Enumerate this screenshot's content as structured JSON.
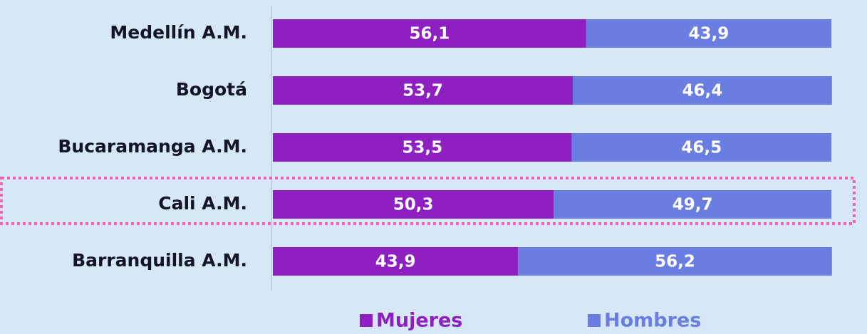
{
  "chart_data": {
    "type": "stacked_barh",
    "categories": [
      "Medellín A.M.",
      "Bogotá",
      "Bucaramanga A.M.",
      "Cali A.M.",
      "Barranquilla A.M."
    ],
    "series": [
      {
        "name": "Mujeres",
        "color": "#8e1fc0",
        "values": [
          56.1,
          53.7,
          53.5,
          50.3,
          43.9
        ],
        "value_labels": [
          "56,1",
          "53,7",
          "53,5",
          "50,3",
          "43,9"
        ]
      },
      {
        "name": "Hombres",
        "color": "#6a7de0",
        "values": [
          43.9,
          46.4,
          46.5,
          49.7,
          56.2
        ],
        "value_labels": [
          "43,9",
          "46,4",
          "46,5",
          "49,7",
          "56,2"
        ]
      }
    ],
    "xlim": [
      0,
      100
    ]
  }
}
